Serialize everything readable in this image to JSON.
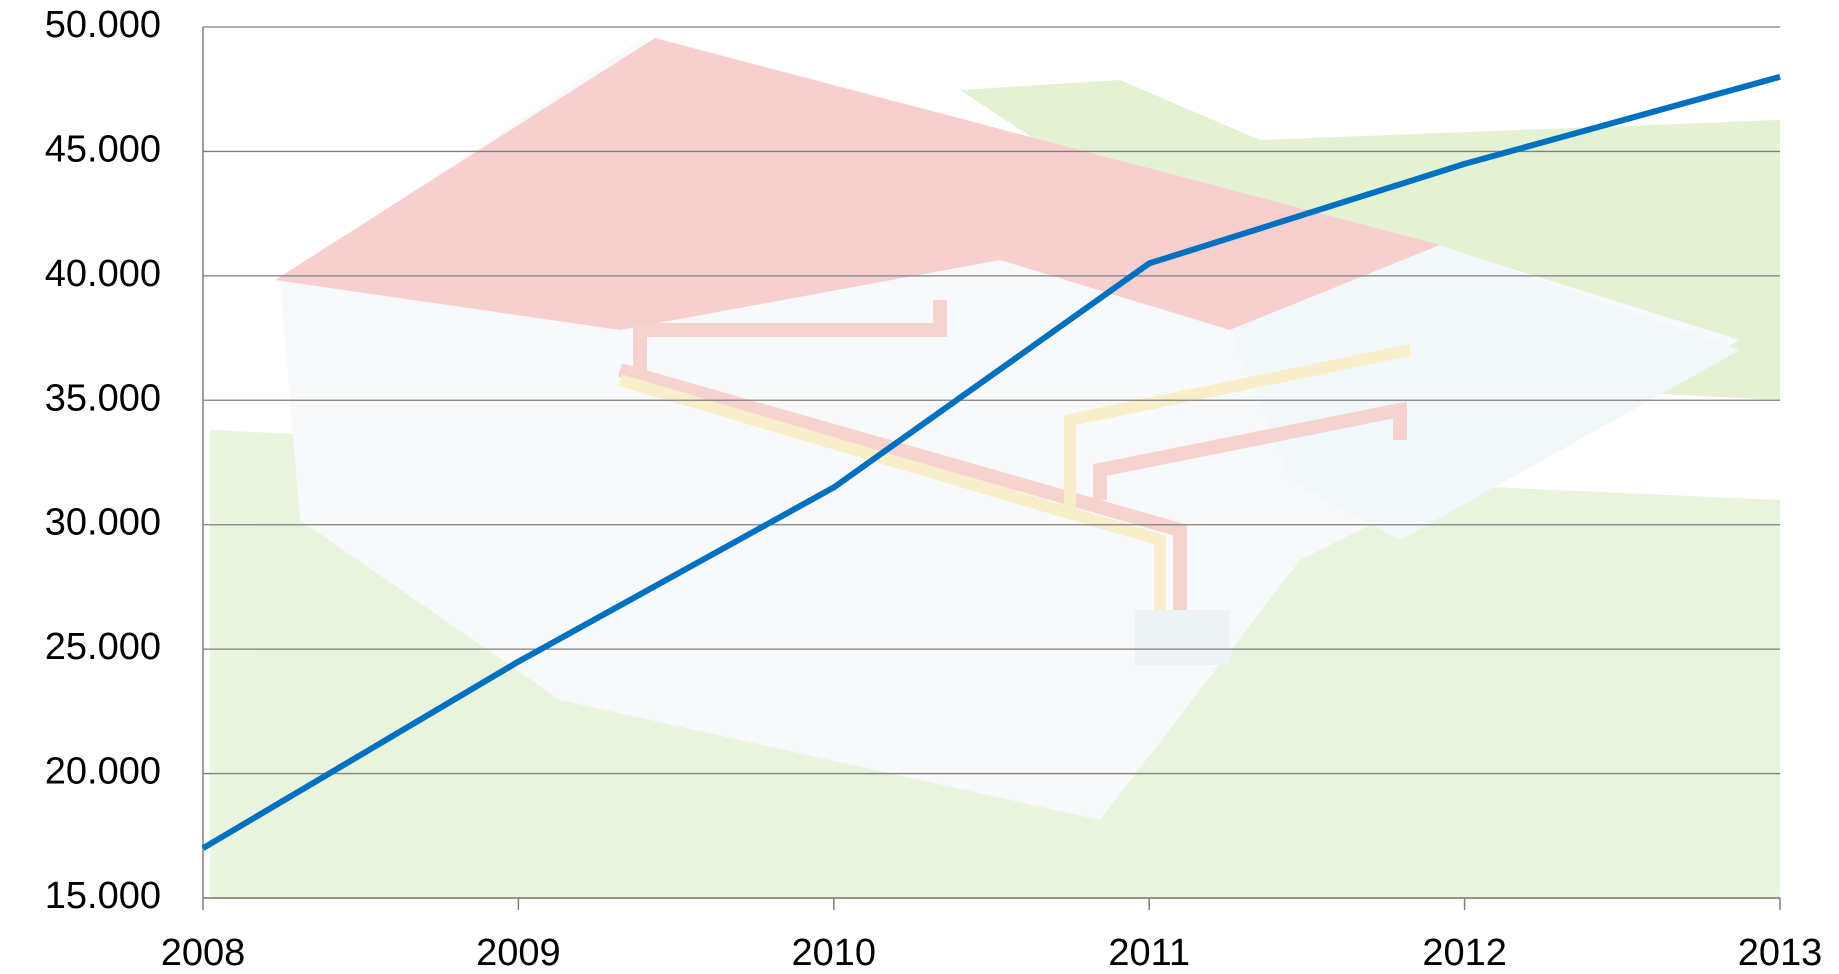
{
  "chart_data": {
    "type": "line",
    "x": [
      2008,
      2009,
      2010,
      2011,
      2012,
      2013
    ],
    "series": [
      {
        "color": "#0070c0",
        "values": [
          17000,
          24500,
          31500,
          40500,
          44500,
          48000
        ]
      }
    ],
    "xlim": [
      2008,
      2013
    ],
    "xticks": [
      2008,
      2009,
      2010,
      2011,
      2012,
      2013
    ],
    "ylim": [
      15000,
      50000
    ],
    "yticks": [
      {
        "value": 15000,
        "label": "15.000"
      },
      {
        "value": 20000,
        "label": "20.000"
      },
      {
        "value": 25000,
        "label": "25.000"
      },
      {
        "value": 30000,
        "label": "30.000"
      },
      {
        "value": 35000,
        "label": "35.000"
      },
      {
        "value": 40000,
        "label": "40.000"
      },
      {
        "value": 45000,
        "label": "45.000"
      },
      {
        "value": 50000,
        "label": "50.000"
      }
    ],
    "grid": true
  }
}
